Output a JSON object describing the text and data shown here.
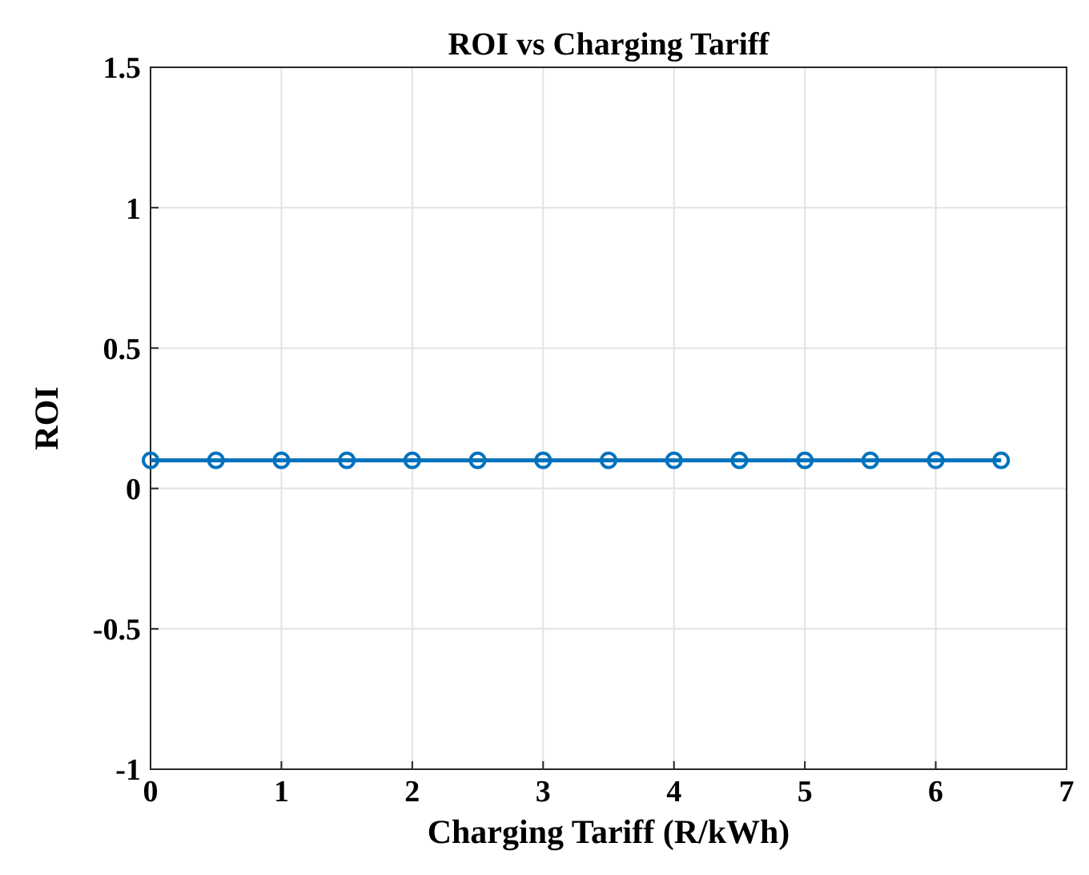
{
  "chart_data": {
    "type": "line",
    "title": "ROI vs Charging Tariff",
    "xlabel": "Charging Tariff (R/kWh)",
    "ylabel": "ROI",
    "x": [
      0,
      0.5,
      1,
      1.5,
      2,
      2.5,
      3,
      3.5,
      4,
      4.5,
      5,
      5.5,
      6,
      6.5
    ],
    "series": [
      {
        "color": "#0072bd",
        "values": [
          0.1,
          0.1,
          0.1,
          0.1,
          0.1,
          0.1,
          0.1,
          0.1,
          0.1,
          0.1,
          0.1,
          0.1,
          0.1,
          0.1
        ]
      }
    ],
    "xlim": [
      0,
      7
    ],
    "xticks": [
      0,
      1,
      2,
      3,
      4,
      5,
      6,
      7
    ],
    "ylim": [
      -1,
      1.5
    ],
    "yticks": [
      -1,
      -0.5,
      0,
      0.5,
      1,
      1.5
    ],
    "grid": true,
    "marker": "circle",
    "line_style": "solid"
  }
}
